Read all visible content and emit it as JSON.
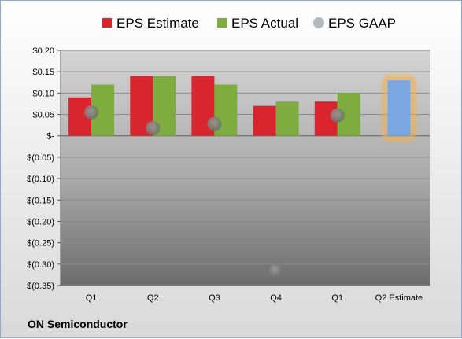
{
  "chart_data": {
    "type": "bar",
    "categories": [
      "Q1",
      "Q2",
      "Q3",
      "Q4",
      "Q1",
      "Q2 Estimate"
    ],
    "series": [
      {
        "name": "EPS Estimate",
        "values": [
          0.09,
          0.14,
          0.14,
          0.07,
          0.08,
          null
        ],
        "color": "#d9262e"
      },
      {
        "name": "EPS Actual",
        "values": [
          0.12,
          0.14,
          0.12,
          0.08,
          0.1,
          null
        ],
        "color": "#7fac3e"
      },
      {
        "name": "EPS GAAP",
        "values": [
          0.055,
          0.018,
          0.028,
          -0.315,
          0.048,
          null
        ],
        "color": "#b4b9bf",
        "style": "dot"
      }
    ],
    "highlight": {
      "category": "Q2 Estimate",
      "value": 0.13,
      "color": "#7aa7e0",
      "glow": "#f5b04a"
    },
    "ylim": [
      -0.35,
      0.2
    ],
    "yticks": [
      {
        "value": 0.2,
        "label": "$0.20"
      },
      {
        "value": 0.15,
        "label": "$0.15"
      },
      {
        "value": 0.1,
        "label": "$0.10"
      },
      {
        "value": 0.05,
        "label": "$0.05"
      },
      {
        "value": 0,
        "label": "$-"
      },
      {
        "value": -0.05,
        "label": "$(0.05)"
      },
      {
        "value": -0.1,
        "label": "$(0.10)"
      },
      {
        "value": -0.15,
        "label": "$(0.15)"
      },
      {
        "value": -0.2,
        "label": "$(0.20)"
      },
      {
        "value": -0.25,
        "label": "$(0.25)"
      },
      {
        "value": -0.3,
        "label": "$(0.30)"
      },
      {
        "value": -0.35,
        "label": "$(0.35)"
      }
    ],
    "grid": true,
    "legend_position": "top"
  },
  "footer": {
    "company": "ON Semiconductor"
  }
}
